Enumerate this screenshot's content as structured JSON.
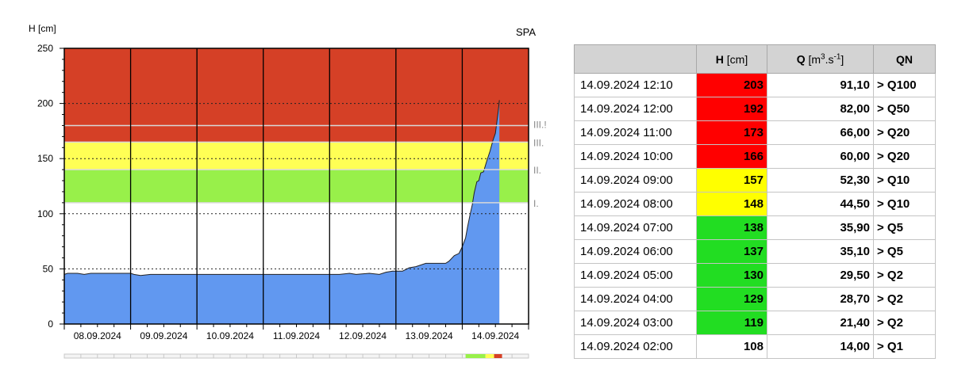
{
  "chart_data": {
    "type": "area",
    "station": "SPA",
    "ylabel": "H [cm]",
    "ylim": [
      0,
      250
    ],
    "ytick_labels": [
      "0",
      "50",
      "100",
      "150",
      "200",
      "250"
    ],
    "x_tick_labels": [
      "08.09.2024",
      "09.09.2024",
      "10.09.2024",
      "11.09.2024",
      "12.09.2024",
      "13.09.2024",
      "14.09.2024"
    ],
    "xlim": [
      0,
      7
    ],
    "threshold_lines": [
      {
        "label": "I.",
        "value": 110
      },
      {
        "label": "II.",
        "value": 140
      },
      {
        "label": "III.",
        "value": 165
      },
      {
        "label": "III.!",
        "value": 180
      }
    ],
    "bands": [
      {
        "from": 110,
        "to": 140,
        "color": "#98f04a"
      },
      {
        "from": 140,
        "to": 165,
        "color": "#ffff55"
      },
      {
        "from": 165,
        "to": 250,
        "color": "#d54026"
      }
    ],
    "dotted_lines": [
      50,
      100,
      150,
      200
    ],
    "series_color": "#6198f0",
    "series": [
      {
        "values": [
          [
            0,
            45
          ],
          [
            0.05,
            46
          ],
          [
            0.2,
            46
          ],
          [
            0.3,
            45
          ],
          [
            0.4,
            46
          ],
          [
            1.0,
            46
          ],
          [
            1.05,
            45
          ],
          [
            1.15,
            44
          ],
          [
            1.3,
            45
          ],
          [
            1.4,
            45
          ],
          [
            2,
            45
          ],
          [
            3,
            45
          ],
          [
            4,
            45
          ],
          [
            4.15,
            45
          ],
          [
            4.3,
            46
          ],
          [
            4.4,
            45
          ],
          [
            4.6,
            46
          ],
          [
            4.75,
            45
          ],
          [
            4.85,
            47
          ],
          [
            4.95,
            48
          ],
          [
            5.1,
            48
          ],
          [
            5.2,
            51
          ],
          [
            5.3,
            52
          ],
          [
            5.45,
            55
          ],
          [
            5.75,
            55
          ],
          [
            5.8,
            57
          ],
          [
            5.88,
            62
          ],
          [
            5.95,
            64
          ],
          [
            6.0,
            70
          ],
          [
            6.05,
            78
          ],
          [
            6.08,
            88
          ],
          [
            6.12,
            100
          ],
          [
            6.15,
            108
          ],
          [
            6.18,
            119
          ],
          [
            6.22,
            129
          ],
          [
            6.25,
            130
          ],
          [
            6.28,
            137
          ],
          [
            6.32,
            138
          ],
          [
            6.37,
            148
          ],
          [
            6.42,
            157
          ],
          [
            6.46,
            166
          ],
          [
            6.5,
            173
          ],
          [
            6.54,
            192
          ],
          [
            6.56,
            203
          ]
        ]
      }
    ]
  },
  "table": {
    "headers": {
      "datetime": "",
      "h_main": "H",
      "h_unit": "[cm]",
      "q_main": "Q",
      "q_unit_a": "[m",
      "q_sup": "3",
      "q_unit_b": ".s",
      "q_sup2": "-1",
      "q_unit_c": "]",
      "qn": "QN"
    },
    "rows": [
      {
        "datetime": "14.09.2024 12:10",
        "h": "203",
        "q": "91,10",
        "qn": "> Q100",
        "color": "#ff0000"
      },
      {
        "datetime": "14.09.2024 12:00",
        "h": "192",
        "q": "82,00",
        "qn": "> Q50",
        "color": "#ff0000"
      },
      {
        "datetime": "14.09.2024 11:00",
        "h": "173",
        "q": "66,00",
        "qn": "> Q20",
        "color": "#ff0000"
      },
      {
        "datetime": "14.09.2024 10:00",
        "h": "166",
        "q": "60,00",
        "qn": "> Q20",
        "color": "#ff0000"
      },
      {
        "datetime": "14.09.2024 09:00",
        "h": "157",
        "q": "52,30",
        "qn": "> Q10",
        "color": "#ffff00"
      },
      {
        "datetime": "14.09.2024 08:00",
        "h": "148",
        "q": "44,50",
        "qn": "> Q10",
        "color": "#ffff00"
      },
      {
        "datetime": "14.09.2024 07:00",
        "h": "138",
        "q": "35,90",
        "qn": "> Q5",
        "color": "#22dd22"
      },
      {
        "datetime": "14.09.2024 06:00",
        "h": "137",
        "q": "35,10",
        "qn": "> Q5",
        "color": "#22dd22"
      },
      {
        "datetime": "14.09.2024 05:00",
        "h": "130",
        "q": "29,50",
        "qn": "> Q2",
        "color": "#22dd22"
      },
      {
        "datetime": "14.09.2024 04:00",
        "h": "129",
        "q": "28,70",
        "qn": "> Q2",
        "color": "#22dd22"
      },
      {
        "datetime": "14.09.2024 03:00",
        "h": "119",
        "q": "21,40",
        "qn": "> Q2",
        "color": "#22dd22"
      },
      {
        "datetime": "14.09.2024 02:00",
        "h": "108",
        "q": "14,00",
        "qn": "> Q1",
        "color": "#ffffff"
      }
    ]
  }
}
